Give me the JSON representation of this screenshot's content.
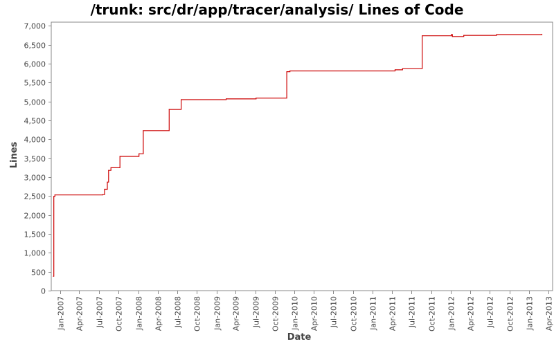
{
  "chart_data": {
    "type": "line",
    "title": "/trunk: src/dr/app/tracer/analysis/ Lines of Code",
    "xlabel": "Date",
    "ylabel": "Lines",
    "x_ticks": [
      "Jan-2007",
      "Apr-2007",
      "Jul-2007",
      "Oct-2007",
      "Jan-2008",
      "Apr-2008",
      "Jul-2008",
      "Oct-2008",
      "Jan-2009",
      "Apr-2009",
      "Jul-2009",
      "Oct-2009",
      "Jan-2010",
      "Apr-2010",
      "Jul-2010",
      "Oct-2010",
      "Jan-2011",
      "Apr-2011",
      "Jul-2011",
      "Oct-2011",
      "Jan-2012",
      "Apr-2012",
      "Jul-2012",
      "Oct-2012",
      "Jan-2013",
      "Apr-2013"
    ],
    "y_ticks": [
      0,
      500,
      1000,
      1500,
      2000,
      2500,
      3000,
      3500,
      4000,
      4500,
      5000,
      5500,
      6000,
      6500,
      7000
    ],
    "ylim": [
      0,
      7100
    ],
    "xlim": [
      "2006-11-21",
      "2013-04-20"
    ],
    "grid": false,
    "line_color": "#cc0000",
    "step": true,
    "series": [
      {
        "points": [
          [
            "2006-12-01",
            380
          ],
          [
            "2006-12-03",
            2490
          ],
          [
            "2006-12-08",
            2530
          ],
          [
            "2007-07-20",
            2540
          ],
          [
            "2007-07-28",
            2680
          ],
          [
            "2007-08-10",
            2870
          ],
          [
            "2007-08-16",
            3180
          ],
          [
            "2007-08-27",
            3250
          ],
          [
            "2007-10-08",
            3550
          ],
          [
            "2008-01-05",
            3620
          ],
          [
            "2008-01-25",
            4230
          ],
          [
            "2008-05-25",
            4790
          ],
          [
            "2008-07-20",
            5050
          ],
          [
            "2009-02-15",
            5070
          ],
          [
            "2009-07-05",
            5090
          ],
          [
            "2009-11-25",
            5790
          ],
          [
            "2009-12-10",
            5810
          ],
          [
            "2011-04-15",
            5840
          ],
          [
            "2011-05-20",
            5870
          ],
          [
            "2011-08-20",
            6740
          ],
          [
            "2012-01-03",
            6770
          ],
          [
            "2012-01-08",
            6720
          ],
          [
            "2012-03-01",
            6750
          ],
          [
            "2012-08-01",
            6770
          ],
          [
            "2013-03-01",
            6780
          ]
        ]
      }
    ]
  }
}
